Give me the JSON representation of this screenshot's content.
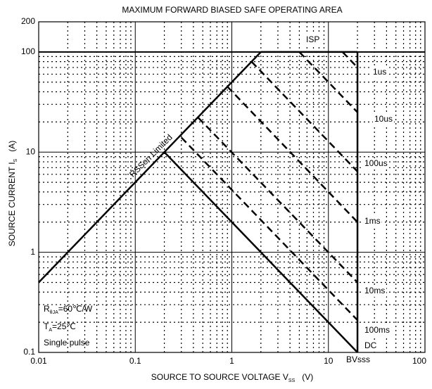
{
  "chart_data": {
    "type": "line",
    "title": "MAXIMUM FORWARD BIASED SAFE OPERATING AREA",
    "x_label": {
      "text": "SOURCE TO SOURCE VOLTAGE  V",
      "sub": "SS",
      "unit": "(V)"
    },
    "y_label": {
      "text": "SOURCE CURRENT  I",
      "sub": "S",
      "unit": "(A)"
    },
    "xscale": "log",
    "yscale": "log",
    "xlim": [
      0.01,
      100
    ],
    "ylim": [
      0.1,
      200
    ],
    "xticks": [
      0.01,
      0.1,
      1,
      10,
      100
    ],
    "yticks": [
      0.1,
      1,
      10,
      100,
      200
    ],
    "grid": true,
    "minor_grid": true,
    "annotations": [
      {
        "main": "R",
        "sub": "θJA",
        "rest": "=60℃/W"
      },
      {
        "main": "T",
        "sub": "A",
        "rest": "=25℃"
      },
      {
        "main": "Single pulse"
      }
    ],
    "series": [
      {
        "name": "RSSon Limited",
        "color": "#000000",
        "style": "solid",
        "x": [
          0.01,
          2
        ],
        "values": [
          0.5,
          100
        ]
      },
      {
        "name": "ISP",
        "color": "#000000",
        "style": "solid",
        "x": [
          2,
          20
        ],
        "values": [
          100,
          100
        ]
      },
      {
        "name": "BVsss",
        "color": "#000000",
        "style": "solid",
        "x": [
          20,
          20
        ],
        "values": [
          100,
          0.1
        ]
      },
      {
        "name": "DC",
        "color": "#000000",
        "style": "solid",
        "x": [
          0.2,
          20
        ],
        "values": [
          10,
          0.1
        ]
      },
      {
        "name": "1us",
        "color": "#000000",
        "style": "dashed",
        "x": [
          14,
          20
        ],
        "values": [
          100,
          70
        ]
      },
      {
        "name": "10us",
        "color": "#000000",
        "style": "dashed",
        "x": [
          5,
          20
        ],
        "values": [
          100,
          25
        ]
      },
      {
        "name": "100us",
        "color": "#000000",
        "style": "dashed",
        "x": [
          1.6,
          20
        ],
        "values": [
          80,
          6.4
        ]
      },
      {
        "name": "1ms",
        "color": "#000000",
        "style": "dashed",
        "x": [
          0.9,
          20
        ],
        "values": [
          45,
          2
        ]
      },
      {
        "name": "10ms",
        "color": "#000000",
        "style": "dashed",
        "x": [
          0.45,
          20
        ],
        "values": [
          22,
          0.5
        ]
      },
      {
        "name": "100ms",
        "color": "#000000",
        "style": "dashed",
        "x": [
          0.3,
          20
        ],
        "values": [
          14,
          0.21
        ]
      }
    ]
  }
}
